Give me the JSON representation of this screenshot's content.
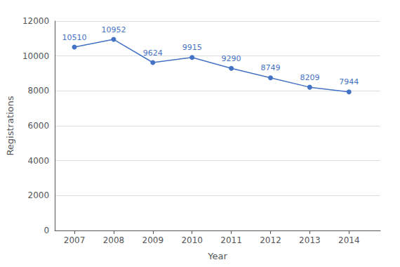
{
  "chart_data": {
    "type": "line",
    "x": [
      2007,
      2008,
      2009,
      2010,
      2011,
      2012,
      2013,
      2014
    ],
    "values": [
      10510,
      10952,
      9624,
      9915,
      9290,
      8749,
      8209,
      7944
    ],
    "color": "#4472C4",
    "marker": "circle",
    "xlabel": "Year",
    "ylabel": "Registrations",
    "xlim": [
      2006.5,
      2014.8
    ],
    "xticks": [
      2007,
      2008,
      2009,
      2010,
      2011,
      2012,
      2013,
      2014
    ],
    "ylim": [
      0,
      12000
    ],
    "yticks": [
      0,
      2000,
      4000,
      6000,
      8000,
      10000,
      12000
    ],
    "grid": "y",
    "data_labels": true
  }
}
